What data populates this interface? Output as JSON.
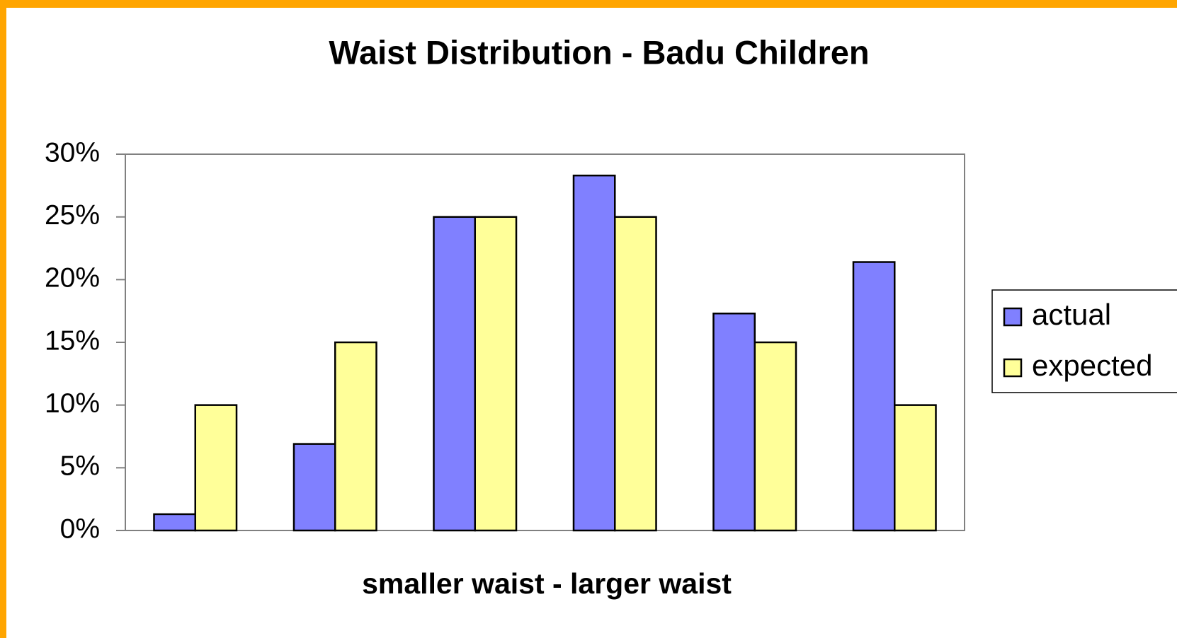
{
  "chart_data": {
    "type": "bar",
    "title": "Waist Distribution - Badu Children",
    "x_label": "smaller waist - larger waist",
    "categories": [
      null,
      null,
      null,
      null,
      null,
      null
    ],
    "series": [
      {
        "name": "actual",
        "color": "#8080ff",
        "values": [
          1.3,
          6.9,
          25,
          28.3,
          17.3,
          21.4
        ]
      },
      {
        "name": "expected",
        "color": "#ffff99",
        "values": [
          10,
          15,
          25,
          25,
          15,
          10
        ]
      }
    ],
    "ylim": [
      0,
      30
    ],
    "yticks": [
      {
        "value": 0,
        "label": "0%"
      },
      {
        "value": 5,
        "label": "5%"
      },
      {
        "value": 10,
        "label": "10%"
      },
      {
        "value": 15,
        "label": "15%"
      },
      {
        "value": 20,
        "label": "20%"
      },
      {
        "value": 25,
        "label": "25%"
      },
      {
        "value": 30,
        "label": "30%"
      }
    ],
    "grid": false,
    "legend": "right"
  }
}
